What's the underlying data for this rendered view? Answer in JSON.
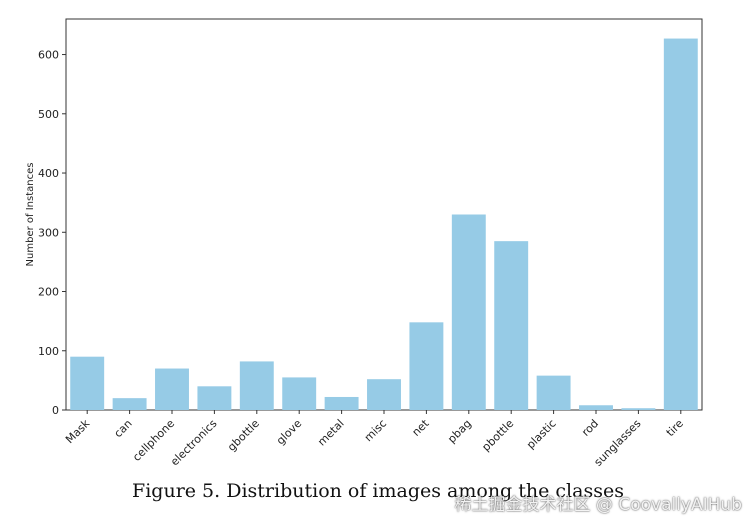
{
  "chart_data": {
    "type": "bar",
    "categories": [
      "Mask",
      "can",
      "cellphone",
      "electronics",
      "gbottle",
      "glove",
      "metal",
      "misc",
      "net",
      "pbag",
      "pbottle",
      "plastic",
      "rod",
      "sunglasses",
      "tire"
    ],
    "values": [
      90,
      20,
      70,
      40,
      82,
      55,
      22,
      52,
      148,
      330,
      285,
      58,
      8,
      3,
      627
    ],
    "title": "",
    "xlabel": "",
    "ylabel": "Number of Instances",
    "ylim": [
      0,
      660
    ],
    "yticks": [
      0,
      100,
      200,
      300,
      400,
      500,
      600
    ],
    "bar_color": "#96cbe6",
    "grid": false
  },
  "caption": "Figure 5. Distribution of images among the classes",
  "watermark": "稀土掘金技术社区 @ CoovallyAIHub"
}
